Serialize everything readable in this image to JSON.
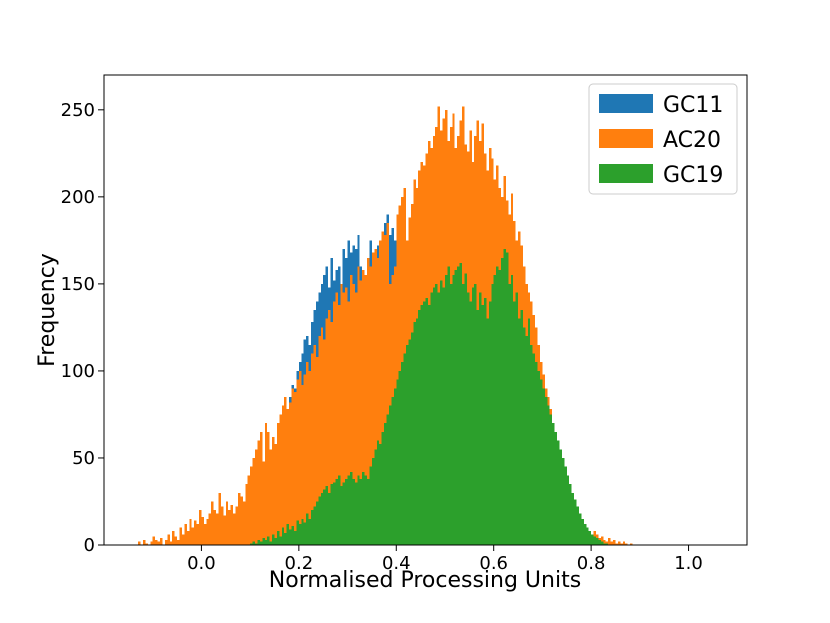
{
  "chart_data": {
    "type": "bar",
    "subtype": "overlaid-histogram",
    "title": "",
    "xlabel": "Normalised Processing Units",
    "ylabel": "Frequency",
    "xlim": [
      -0.2,
      1.12
    ],
    "ylim": [
      0,
      270
    ],
    "xticks": [
      "0.0",
      "0.2",
      "0.4",
      "0.6",
      "0.8",
      "1.0"
    ],
    "yticks": [
      "0",
      "50",
      "100",
      "150",
      "200",
      "250"
    ],
    "grid": false,
    "legend_position": "top-right",
    "series": [
      {
        "name": "GC11",
        "color": "#1f77b4",
        "bin_start": 0.08,
        "bin_width": 0.005,
        "values": [
          12,
          20,
          14,
          25,
          22,
          30,
          28,
          35,
          40,
          38,
          50,
          48,
          52,
          55,
          50,
          58,
          60,
          62,
          70,
          75,
          85,
          92,
          90,
          100,
          105,
          110,
          118,
          120,
          115,
          128,
          135,
          140,
          145,
          150,
          155,
          160,
          148,
          165,
          152,
          158,
          160,
          150,
          170,
          165,
          175,
          168,
          172,
          170,
          178,
          160,
          155,
          150,
          148,
          175,
          168,
          170,
          172,
          175,
          180,
          185,
          190,
          178,
          182,
          175,
          185,
          190,
          180
        ]
      },
      {
        "name": "AC20",
        "color": "#ff7f0e",
        "bin_start": -0.13,
        "bin_width": 0.005,
        "values": [
          2,
          0,
          3,
          1,
          0,
          2,
          5,
          3,
          2,
          4,
          0,
          3,
          6,
          2,
          8,
          5,
          3,
          10,
          6,
          12,
          8,
          15,
          10,
          14,
          12,
          20,
          16,
          12,
          15,
          18,
          25,
          20,
          18,
          30,
          22,
          17,
          25,
          20,
          23,
          18,
          22,
          30,
          28,
          25,
          35,
          40,
          45,
          50,
          55,
          60,
          65,
          48,
          70,
          65,
          55,
          62,
          58,
          70,
          75,
          80,
          85,
          78,
          82,
          90,
          88,
          95,
          100,
          92,
          98,
          105,
          100,
          110,
          115,
          108,
          120,
          125,
          118,
          130,
          135,
          128,
          140,
          145,
          138,
          150,
          145,
          148,
          140,
          155,
          150,
          145,
          160,
          152,
          158,
          155,
          165,
          160,
          168,
          170,
          165,
          175,
          180,
          178,
          185,
          150,
          155,
          160,
          190,
          195,
          200,
          205,
          175,
          188,
          196,
          210,
          205,
          215,
          220,
          218,
          225,
          232,
          228,
          235,
          240,
          252,
          238,
          245,
          250,
          232,
          240,
          248,
          228,
          235,
          244,
          252,
          230,
          226,
          238,
          220,
          235,
          244,
          232,
          242,
          225,
          215,
          228,
          222,
          210,
          218,
          205,
          200,
          212,
          198,
          190,
          202,
          186,
          175,
          180,
          172,
          160,
          150,
          145,
          140,
          132,
          125,
          115,
          105,
          98,
          90,
          85,
          78,
          70,
          62,
          55,
          50,
          45,
          40,
          35,
          30,
          26,
          22,
          18,
          15,
          12,
          10,
          8,
          6,
          5,
          8,
          6,
          4,
          5,
          3,
          2,
          4,
          2,
          3,
          1,
          2,
          1,
          2,
          1,
          0,
          1
        ]
      },
      {
        "name": "GC19",
        "color": "#2ca02c",
        "bin_start": 0.1,
        "bin_width": 0.005,
        "values": [
          1,
          2,
          1,
          3,
          2,
          4,
          3,
          5,
          2,
          6,
          4,
          8,
          5,
          10,
          7,
          12,
          9,
          11,
          8,
          14,
          12,
          15,
          13,
          18,
          15,
          20,
          22,
          25,
          28,
          30,
          32,
          34,
          30,
          35,
          36,
          38,
          40,
          34,
          36,
          38,
          40,
          42,
          38,
          36,
          40,
          38,
          42,
          40,
          38,
          45,
          50,
          55,
          60,
          58,
          65,
          70,
          75,
          80,
          85,
          90,
          95,
          100,
          105,
          110,
          115,
          118,
          122,
          128,
          130,
          135,
          138,
          140,
          142,
          138,
          145,
          148,
          150,
          145,
          152,
          148,
          155,
          160,
          150,
          155,
          158,
          160,
          162,
          150,
          156,
          145,
          140,
          148,
          150,
          135,
          145,
          138,
          142,
          130,
          140,
          150,
          155,
          160,
          158,
          165,
          170,
          168,
          150,
          155,
          140,
          145,
          130,
          135,
          125,
          120,
          130,
          115,
          110,
          105,
          100,
          95,
          90,
          85,
          80,
          75,
          70,
          65,
          60,
          55,
          50,
          45,
          40,
          35,
          30,
          26,
          22,
          18,
          15,
          12,
          10,
          8,
          6,
          5,
          4,
          3,
          2,
          1,
          1
        ]
      }
    ]
  }
}
